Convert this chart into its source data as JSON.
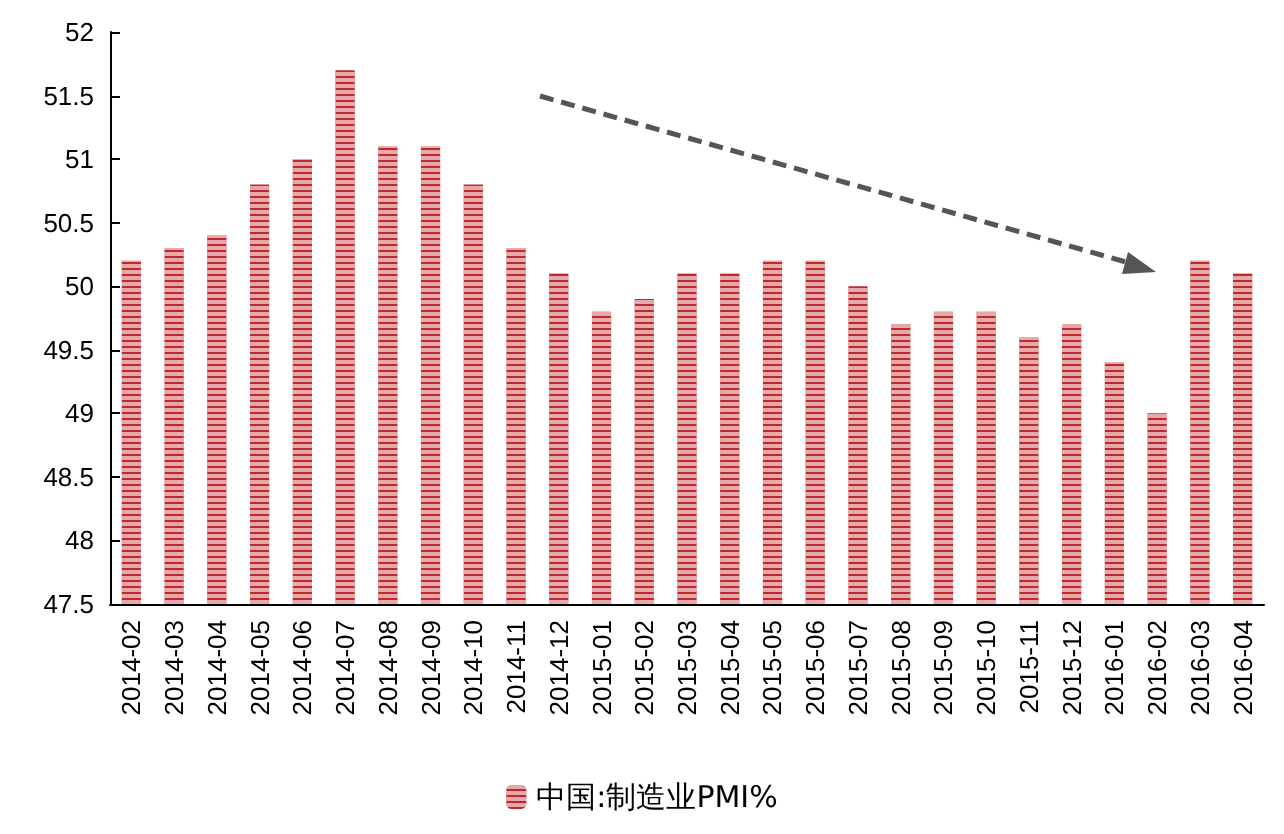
{
  "chart_data": {
    "type": "bar",
    "categories": [
      "2014-02",
      "2014-03",
      "2014-04",
      "2014-05",
      "2014-06",
      "2014-07",
      "2014-08",
      "2014-09",
      "2014-10",
      "2014-11",
      "2014-12",
      "2015-01",
      "2015-02",
      "2015-03",
      "2015-04",
      "2015-05",
      "2015-06",
      "2015-07",
      "2015-08",
      "2015-09",
      "2015-10",
      "2015-11",
      "2015-12",
      "2016-01",
      "2016-02",
      "2016-03",
      "2016-04"
    ],
    "series": [
      {
        "name": "中国:制造业PMI%",
        "color": "#c0282d",
        "values": [
          50.2,
          50.3,
          50.4,
          50.8,
          51.0,
          51.7,
          51.1,
          51.1,
          50.8,
          50.3,
          50.1,
          49.8,
          49.9,
          50.1,
          50.1,
          50.2,
          50.2,
          50.0,
          49.7,
          49.8,
          49.8,
          49.6,
          49.7,
          49.4,
          49.0,
          50.2,
          50.1
        ]
      }
    ],
    "ylim": [
      47.5,
      52
    ],
    "yticks": [
      47.5,
      48,
      48.5,
      49,
      49.5,
      50,
      50.5,
      51,
      51.5,
      52
    ],
    "legend": "bottom",
    "grid": false
  }
}
